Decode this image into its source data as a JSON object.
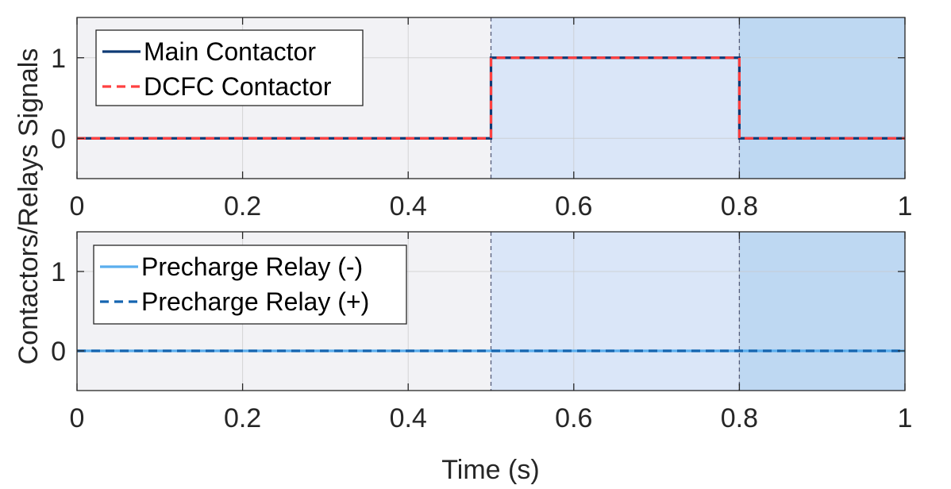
{
  "figure": {
    "ylabel": "Contactors/Relays Signals",
    "xlabel": "Time (s)"
  },
  "chart_data": [
    {
      "type": "line",
      "title": "",
      "xlabel": "",
      "ylabel": "",
      "xlim": [
        0,
        1
      ],
      "ylim": [
        -0.5,
        1.5
      ],
      "xticks": [
        0,
        0.2,
        0.4,
        0.6,
        0.8,
        1
      ],
      "xtick_labels": [
        "0",
        "0.2",
        "0.4",
        "0.6",
        "0.8",
        "1"
      ],
      "yticks": [
        0,
        1
      ],
      "ytick_labels": [
        "0",
        "1"
      ],
      "grid": true,
      "legend_position": "top-left",
      "shaded_regions": [
        {
          "x": [
            0,
            0.5
          ],
          "color": "#f2f2f5"
        },
        {
          "x": [
            0.5,
            0.8
          ],
          "color": "#dae6f8"
        },
        {
          "x": [
            0.8,
            1
          ],
          "color": "#bed8f2"
        }
      ],
      "vertical_markers": [
        0.5,
        0.8
      ],
      "series": [
        {
          "name": "Main Contactor",
          "color": "#0e3a75",
          "style": "solid",
          "x": [
            0,
            0.5,
            0.5,
            0.8,
            0.8,
            1
          ],
          "y": [
            0,
            0,
            1,
            1,
            0,
            0
          ]
        },
        {
          "name": "DCFC Contactor",
          "color": "#ff4040",
          "style": "dashed",
          "x": [
            0,
            0.5,
            0.5,
            0.8,
            0.8,
            1
          ],
          "y": [
            0,
            0,
            1,
            1,
            0,
            0
          ]
        }
      ]
    },
    {
      "type": "line",
      "title": "",
      "xlabel": "Time (s)",
      "ylabel": "",
      "xlim": [
        0,
        1
      ],
      "ylim": [
        -0.5,
        1.5
      ],
      "xticks": [
        0,
        0.2,
        0.4,
        0.6,
        0.8,
        1
      ],
      "xtick_labels": [
        "0",
        "0.2",
        "0.4",
        "0.6",
        "0.8",
        "1"
      ],
      "yticks": [
        0,
        1
      ],
      "ytick_labels": [
        "0",
        "1"
      ],
      "grid": true,
      "legend_position": "top-left",
      "shaded_regions": [
        {
          "x": [
            0,
            0.5
          ],
          "color": "#f2f2f5"
        },
        {
          "x": [
            0.5,
            0.8
          ],
          "color": "#dae6f8"
        },
        {
          "x": [
            0.8,
            1
          ],
          "color": "#bed8f2"
        }
      ],
      "vertical_markers": [
        0.5,
        0.8
      ],
      "series": [
        {
          "name": "Precharge Relay (-)",
          "color": "#5aaeee",
          "style": "solid",
          "x": [
            0,
            1
          ],
          "y": [
            0,
            0
          ]
        },
        {
          "name": "Precharge Relay (+)",
          "color": "#1565b0",
          "style": "dashed",
          "x": [
            0,
            1
          ],
          "y": [
            0,
            0
          ]
        }
      ]
    }
  ]
}
